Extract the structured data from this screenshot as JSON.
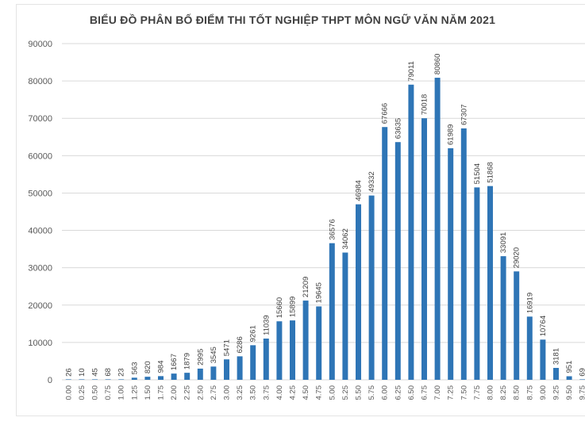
{
  "chart_data": {
    "type": "bar",
    "title": "BIỂU ĐỒ PHÂN BỐ ĐIỂM THI TỐT NGHIỆP THPT MÔN NGỮ VĂN NĂM 2021",
    "xlabel": "",
    "ylabel": "",
    "ylim": [
      0,
      90000
    ],
    "yticks": [
      "0",
      "10000",
      "20000",
      "30000",
      "40000",
      "50000",
      "60000",
      "70000",
      "80000",
      "90000"
    ],
    "grid": true,
    "legend": "none",
    "bar_color": "#2e75b6",
    "categories": [
      "0.00",
      "0.25",
      "0.50",
      "0.75",
      "1.00",
      "1.25",
      "1.50",
      "1.75",
      "2.00",
      "2.25",
      "2.50",
      "2.75",
      "3.00",
      "3.25",
      "3.50",
      "3.75",
      "4.00",
      "4.25",
      "4.50",
      "4.75",
      "5.00",
      "5.25",
      "5.50",
      "5.75",
      "6.00",
      "6.25",
      "6.50",
      "6.75",
      "7.00",
      "7.25",
      "7.50",
      "7.75",
      "8.00",
      "8.25",
      "8.50",
      "8.75",
      "9.00",
      "9.25",
      "9.50",
      "9.75"
    ],
    "values": [
      26,
      10,
      45,
      68,
      23,
      563,
      820,
      984,
      1667,
      1879,
      2995,
      3545,
      5471,
      6286,
      9261,
      11039,
      15660,
      15899,
      21209,
      19645,
      36576,
      34062,
      46984,
      49332,
      67666,
      63635,
      79011,
      70018,
      80860,
      61989,
      67307,
      51504,
      51868,
      33091,
      29020,
      16919,
      10764,
      3181,
      951,
      69
    ]
  }
}
